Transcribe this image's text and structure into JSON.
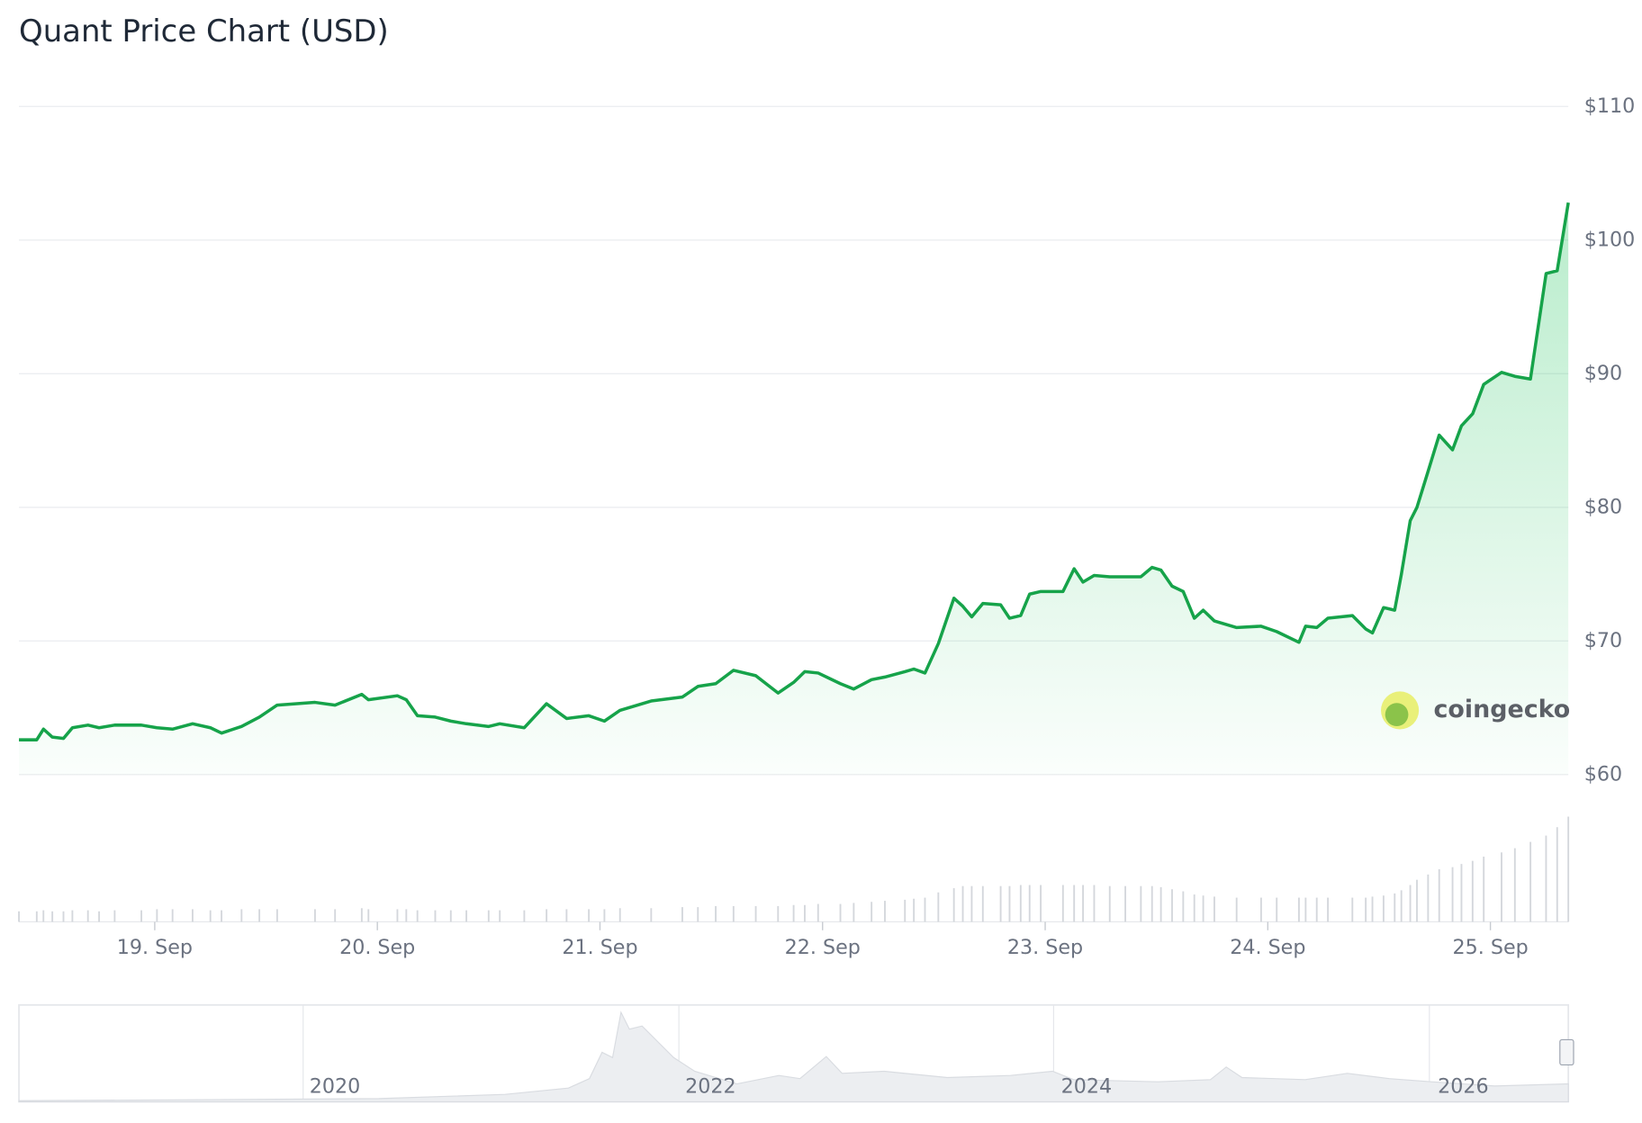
{
  "chart_data": {
    "type": "line",
    "title": "Quant Price Chart (USD)",
    "x": [
      18.39,
      18.47,
      18.5,
      18.54,
      18.59,
      18.63,
      18.7,
      18.75,
      18.82,
      18.94,
      19.01,
      19.08,
      19.17,
      19.25,
      19.3,
      19.39,
      19.47,
      19.55,
      19.72,
      19.81,
      19.93,
      19.96,
      20.09,
      20.13,
      20.18,
      20.26,
      20.33,
      20.4,
      20.5,
      20.55,
      20.66,
      20.76,
      20.85,
      20.95,
      21.02,
      21.09,
      21.23,
      21.37,
      21.44,
      21.52,
      21.6,
      21.7,
      21.8,
      21.87,
      21.92,
      21.98,
      22.08,
      22.14,
      22.22,
      22.28,
      22.37,
      22.41,
      22.46,
      22.52,
      22.59,
      22.63,
      22.67,
      22.72,
      22.8,
      22.84,
      22.89,
      22.93,
      22.98,
      23.08,
      23.13,
      23.17,
      23.22,
      23.29,
      23.36,
      23.43,
      23.48,
      23.52,
      23.57,
      23.62,
      23.67,
      23.71,
      23.76,
      23.86,
      23.97,
      24.04,
      24.14,
      24.17,
      24.22,
      24.27,
      24.38,
      24.44,
      24.47,
      24.52,
      24.57,
      24.6,
      24.64,
      24.67,
      24.72,
      24.77,
      24.83,
      24.87,
      24.92,
      24.97,
      25.05,
      25.11,
      25.18,
      25.25,
      25.3,
      25.35
    ],
    "series": [
      {
        "color": "#16a34a",
        "values": [
          62.6,
          62.6,
          63.4,
          62.8,
          62.7,
          63.5,
          63.7,
          63.5,
          63.7,
          63.7,
          63.5,
          63.4,
          63.8,
          63.5,
          63.1,
          63.6,
          64.3,
          65.2,
          65.4,
          65.2,
          66.0,
          65.6,
          65.9,
          65.6,
          64.4,
          64.3,
          64.0,
          63.8,
          63.6,
          63.8,
          63.5,
          65.3,
          64.2,
          64.4,
          64.0,
          64.8,
          65.5,
          65.8,
          66.6,
          66.8,
          67.8,
          67.4,
          66.1,
          66.9,
          67.7,
          67.6,
          66.8,
          66.4,
          67.1,
          67.3,
          67.7,
          67.9,
          67.6,
          69.8,
          73.2,
          72.6,
          71.8,
          72.8,
          72.7,
          71.7,
          71.9,
          73.5,
          73.7,
          73.7,
          75.4,
          74.4,
          74.9,
          74.8,
          74.8,
          74.8,
          75.5,
          75.3,
          74.1,
          73.7,
          71.7,
          72.3,
          71.5,
          71.0,
          71.1,
          70.7,
          69.9,
          71.1,
          71.0,
          71.7,
          71.9,
          70.9,
          70.6,
          72.5,
          72.3,
          75.0,
          79.0,
          80.0,
          82.7,
          85.4,
          84.3,
          86.1,
          87.0,
          89.2,
          90.1,
          89.8,
          89.6,
          97.5,
          97.7,
          102.8
        ]
      },
      {
        "type": "bar",
        "color": "#d4d7dc",
        "values": [
          10,
          10,
          11,
          10,
          10,
          11,
          11,
          10,
          11,
          11,
          12,
          12,
          12,
          11,
          11,
          12,
          12,
          12,
          12,
          12,
          13,
          12,
          12,
          12,
          11,
          11,
          11,
          11,
          11,
          11,
          11,
          12,
          12,
          12,
          12,
          13,
          13,
          14,
          14,
          15,
          15,
          15,
          15,
          16,
          16,
          17,
          17,
          18,
          19,
          20,
          21,
          22,
          23,
          28,
          32,
          34,
          34,
          34,
          34,
          34,
          35,
          35,
          35,
          35,
          35,
          35,
          35,
          34,
          34,
          34,
          34,
          33,
          31,
          29,
          26,
          25,
          24,
          23,
          23,
          23,
          23,
          23,
          23,
          23,
          23,
          23,
          24,
          25,
          27,
          30,
          35,
          40,
          45,
          50,
          52,
          55,
          58,
          62,
          66,
          70,
          76,
          82,
          90,
          100
        ]
      }
    ],
    "xlim": [
      18.39,
      25.35
    ],
    "xticks": [
      {
        "value": 19,
        "label": "19. Sep"
      },
      {
        "value": 20,
        "label": "20. Sep"
      },
      {
        "value": 21,
        "label": "21. Sep"
      },
      {
        "value": 22,
        "label": "22. Sep"
      },
      {
        "value": 23,
        "label": "23. Sep"
      },
      {
        "value": 24,
        "label": "24. Sep"
      },
      {
        "value": 25,
        "label": "25. Sep"
      }
    ],
    "ylim": [
      60,
      110
    ],
    "yticks": [
      {
        "value": 60,
        "label": "$60"
      },
      {
        "value": 70,
        "label": "$70"
      },
      {
        "value": 80,
        "label": "$80"
      },
      {
        "value": 90,
        "label": "$90"
      },
      {
        "value": 100,
        "label": "$100"
      },
      {
        "value": 110,
        "label": "$110"
      }
    ],
    "grid": true,
    "watermark": "coingecko",
    "navigator_labels": [
      "2020",
      "2022",
      "2024",
      "2026"
    ]
  }
}
